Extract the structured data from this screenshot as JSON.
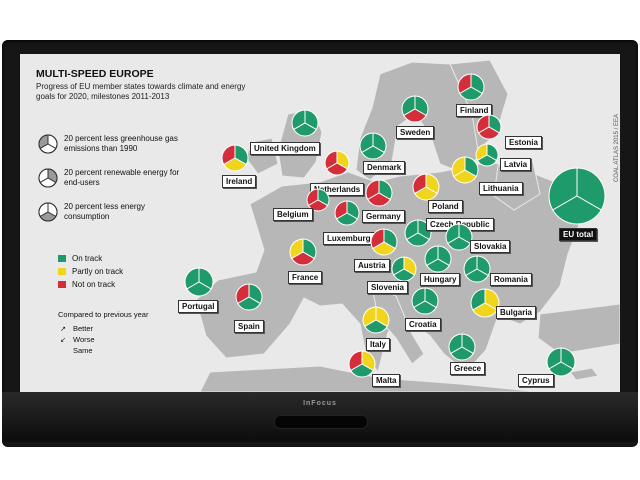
{
  "display": {
    "brand": "InFocus"
  },
  "map": {
    "title": "MULTI-SPEED EUROPE",
    "subtitle": "Progress of EU member states towards climate and energy goals for 2020, milestones 2011-2013",
    "credit": "COAL ATLAS 2015 / EEA"
  },
  "colors": {
    "on_track": "#1f9a6b",
    "partly": "#f1d51c",
    "not": "#d42e3a",
    "land": "#b4b4b4",
    "sea": "#e9e9e9"
  },
  "legend": {
    "goals": [
      {
        "label": "20 percent less greenhouse gas emissions than 1990",
        "segment": "top-left"
      },
      {
        "label": "20 percent renewable energy for end-users",
        "segment": "top-right"
      },
      {
        "label": "20 percent less energy consumption",
        "segment": "bottom"
      }
    ],
    "status": [
      {
        "label": "On track",
        "color": "#1f9a6b"
      },
      {
        "label": "Partly on track",
        "color": "#f1d51c"
      },
      {
        "label": "Not on track",
        "color": "#d42e3a"
      }
    ],
    "compared": {
      "title": "Compared to previous year",
      "items": [
        {
          "label": "Better",
          "icon": "arrow-up-icon"
        },
        {
          "label": "Worse",
          "icon": "arrow-down-icon"
        },
        {
          "label": "Same",
          "icon": "blank-icon"
        }
      ]
    }
  },
  "countries": [
    {
      "name": "United Kingdom",
      "segments": [
        "g",
        "g",
        "g"
      ]
    },
    {
      "name": "Ireland",
      "segments": [
        "r",
        "g",
        "y"
      ]
    },
    {
      "name": "Netherlands",
      "segments": [
        "r",
        "y",
        "r"
      ]
    },
    {
      "name": "Belgium",
      "segments": [
        "r",
        "g",
        "r"
      ]
    },
    {
      "name": "Luxemburg",
      "segments": [
        "r",
        "g",
        "g"
      ]
    },
    {
      "name": "France",
      "segments": [
        "y",
        "g",
        "r"
      ]
    },
    {
      "name": "Portugal",
      "segments": [
        "g",
        "g",
        "g"
      ]
    },
    {
      "name": "Spain",
      "segments": [
        "r",
        "g",
        "g"
      ]
    },
    {
      "name": "Denmark",
      "segments": [
        "g",
        "g",
        "g"
      ]
    },
    {
      "name": "Germany",
      "segments": [
        "r",
        "g",
        "r"
      ]
    },
    {
      "name": "Sweden",
      "segments": [
        "g",
        "g",
        "r"
      ]
    },
    {
      "name": "Finland",
      "segments": [
        "r",
        "g",
        "g"
      ]
    },
    {
      "name": "Estonia",
      "segments": [
        "r",
        "g",
        "r"
      ]
    },
    {
      "name": "Latvia",
      "segments": [
        "y",
        "g",
        "g"
      ]
    },
    {
      "name": "Lithuania",
      "segments": [
        "y",
        "g",
        "y"
      ]
    },
    {
      "name": "Poland",
      "segments": [
        "r",
        "y",
        "y"
      ]
    },
    {
      "name": "Czech Republic",
      "segments": [
        "g",
        "g",
        "g"
      ]
    },
    {
      "name": "Slovakia",
      "segments": [
        "g",
        "g",
        "g"
      ]
    },
    {
      "name": "Austria",
      "segments": [
        "r",
        "g",
        "y"
      ]
    },
    {
      "name": "Hungary",
      "segments": [
        "g",
        "g",
        "g"
      ]
    },
    {
      "name": "Slovenia",
      "segments": [
        "g",
        "y",
        "g"
      ]
    },
    {
      "name": "Romania",
      "segments": [
        "g",
        "g",
        "g"
      ]
    },
    {
      "name": "Croatia",
      "segments": [
        "g",
        "g",
        "g"
      ]
    },
    {
      "name": "Bulgaria",
      "segments": [
        "g",
        "y",
        "y"
      ]
    },
    {
      "name": "Italy",
      "segments": [
        "y",
        "y",
        "g"
      ]
    },
    {
      "name": "Greece",
      "segments": [
        "g",
        "g",
        "g"
      ]
    },
    {
      "name": "Malta",
      "segments": [
        "r",
        "y",
        "g"
      ]
    },
    {
      "name": "Cyprus",
      "segments": [
        "g",
        "g",
        "g"
      ]
    },
    {
      "name": "EU total",
      "segments": [
        "g",
        "g",
        "g"
      ]
    }
  ]
}
